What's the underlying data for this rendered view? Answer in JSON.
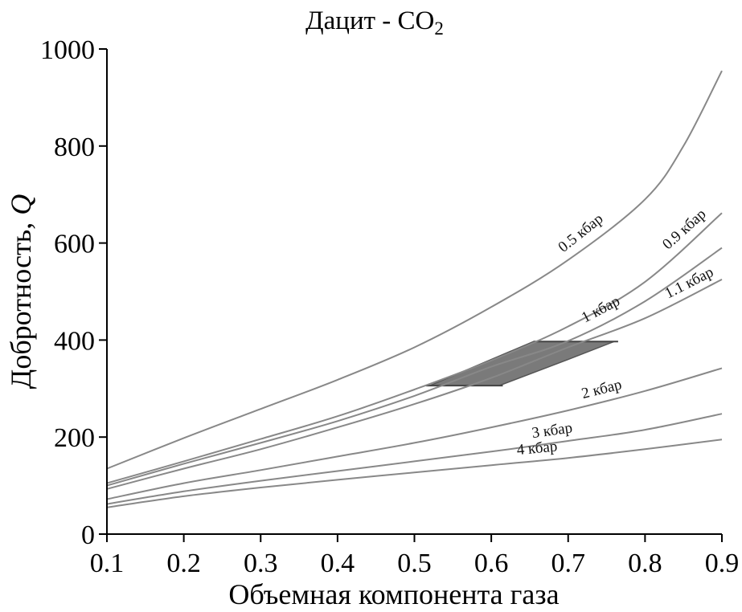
{
  "chart_data": {
    "type": "line",
    "title": "Дацит - CO",
    "title_subscript": "2",
    "xlabel": "Объемная компонента газа",
    "ylabel": "Добротность, ",
    "ylabel_symbol": "Q",
    "xlim": [
      0.1,
      0.9
    ],
    "ylim": [
      0,
      1000
    ],
    "x_ticks": [
      0.1,
      0.2,
      0.3,
      0.4,
      0.5,
      0.6,
      0.7,
      0.8,
      0.9
    ],
    "x_tick_labels": [
      "0.1",
      "0.2",
      "0.3",
      "0.4",
      "0.5",
      "0.6",
      "0.7",
      "0.8",
      "0.9"
    ],
    "y_ticks": [
      0,
      200,
      400,
      600,
      800,
      1000
    ],
    "y_tick_labels": [
      "0",
      "200",
      "400",
      "600",
      "800",
      "1000"
    ],
    "grid": false,
    "line_color": "#888888",
    "series": [
      {
        "name": "0.5 кбар",
        "x": [
          0.1,
          0.2,
          0.3,
          0.4,
          0.5,
          0.6,
          0.7,
          0.8,
          0.85,
          0.9
        ],
        "y": [
          135,
          198,
          258,
          318,
          385,
          468,
          565,
          690,
          800,
          955
        ]
      },
      {
        "name": "0.9 кбар",
        "x": [
          0.1,
          0.2,
          0.3,
          0.4,
          0.5,
          0.6,
          0.7,
          0.8,
          0.9
        ],
        "y": [
          105,
          150,
          196,
          243,
          298,
          358,
          428,
          520,
          662
        ]
      },
      {
        "name": "1 кбар",
        "x": [
          0.1,
          0.2,
          0.3,
          0.4,
          0.5,
          0.6,
          0.7,
          0.8,
          0.9
        ],
        "y": [
          100,
          145,
          188,
          233,
          285,
          345,
          398,
          480,
          590
        ]
      },
      {
        "name": "1.1 кбар",
        "x": [
          0.1,
          0.2,
          0.3,
          0.4,
          0.5,
          0.6,
          0.7,
          0.8,
          0.9
        ],
        "y": [
          93,
          135,
          175,
          220,
          268,
          322,
          385,
          445,
          525
        ]
      },
      {
        "name": "2 кбар",
        "x": [
          0.1,
          0.2,
          0.3,
          0.4,
          0.5,
          0.6,
          0.7,
          0.8,
          0.9
        ],
        "y": [
          72,
          105,
          132,
          160,
          188,
          220,
          255,
          295,
          342
        ]
      },
      {
        "name": "3 кбар",
        "x": [
          0.1,
          0.2,
          0.3,
          0.4,
          0.5,
          0.6,
          0.7,
          0.8,
          0.9
        ],
        "y": [
          62,
          88,
          110,
          130,
          150,
          170,
          192,
          215,
          248
        ]
      },
      {
        "name": "4 кбар",
        "x": [
          0.1,
          0.2,
          0.3,
          0.4,
          0.5,
          0.6,
          0.7,
          0.8,
          0.9
        ],
        "y": [
          55,
          78,
          96,
          112,
          127,
          142,
          157,
          175,
          195
        ]
      }
    ],
    "shaded_region": {
      "color": "#7a7a7a",
      "polygon": [
        [
          0.52,
          306
        ],
        [
          0.61,
          306
        ],
        [
          0.7,
          360
        ],
        [
          0.76,
          397
        ],
        [
          0.655,
          397
        ],
        [
          0.6,
          360
        ]
      ]
    }
  }
}
